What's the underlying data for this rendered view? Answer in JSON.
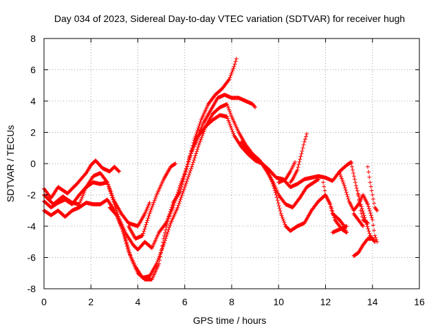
{
  "chart_data": {
    "type": "scatter",
    "title": "Day 034 of 2023, Sidereal Day-to-day VTEC variation (SDTVAR) for receiver hugh",
    "xlabel": "GPS time / hours",
    "ylabel": "SDTVAR / TECUs",
    "xlim": [
      0,
      16
    ],
    "ylim": [
      -8,
      8
    ],
    "xticks": [
      0,
      2,
      4,
      6,
      8,
      10,
      12,
      14,
      16
    ],
    "yticks": [
      -8,
      -6,
      -4,
      -2,
      0,
      2,
      4,
      6,
      8
    ],
    "grid": true,
    "marker": "+",
    "color": "#ff0000",
    "series": [
      {
        "points": [
          [
            0.0,
            -1.6
          ],
          [
            0.3,
            -2.2
          ],
          [
            0.6,
            -1.5
          ],
          [
            1.0,
            -1.9
          ],
          [
            1.4,
            -1.3
          ],
          [
            1.8,
            -0.6
          ],
          [
            2.0,
            -0.1
          ],
          [
            2.2,
            0.2
          ],
          [
            2.5,
            -0.3
          ],
          [
            2.8,
            -0.5
          ],
          [
            3.0,
            -0.2
          ],
          [
            3.2,
            -0.5
          ]
        ]
      },
      {
        "points": [
          [
            0.0,
            -2.4
          ],
          [
            0.3,
            -2.8
          ],
          [
            0.6,
            -2.5
          ],
          [
            0.9,
            -2.3
          ],
          [
            1.2,
            -2.6
          ],
          [
            1.5,
            -2.0
          ],
          [
            1.8,
            -1.5
          ],
          [
            2.1,
            -1.2
          ],
          [
            2.4,
            -1.3
          ],
          [
            2.7,
            -1.2
          ],
          [
            3.0,
            -2.4
          ],
          [
            3.3,
            -3.2
          ],
          [
            3.6,
            -3.8
          ],
          [
            4.0,
            -4.0
          ],
          [
            4.3,
            -3.2
          ],
          [
            4.5,
            -2.5
          ]
        ]
      },
      {
        "points": [
          [
            0.0,
            -2.0
          ],
          [
            0.4,
            -2.6
          ],
          [
            0.8,
            -2.1
          ],
          [
            1.2,
            -2.5
          ],
          [
            1.5,
            -2.6
          ],
          [
            1.8,
            -1.5
          ],
          [
            2.1,
            -0.8
          ],
          [
            2.4,
            -0.6
          ],
          [
            2.7,
            -1.2
          ],
          [
            3.0,
            -2.6
          ],
          [
            3.2,
            -3.5
          ],
          [
            3.5,
            -4.5
          ],
          [
            3.8,
            -5.2
          ],
          [
            4.0,
            -5.5
          ],
          [
            4.3,
            -5.0
          ],
          [
            4.6,
            -5.4
          ],
          [
            4.9,
            -4.4
          ],
          [
            5.2,
            -3.8
          ],
          [
            5.5,
            -2.8
          ],
          [
            5.8,
            -1.4
          ],
          [
            6.0,
            -0.6
          ],
          [
            6.3,
            0.8
          ],
          [
            6.6,
            1.8
          ],
          [
            6.9,
            2.4
          ],
          [
            7.2,
            2.8
          ],
          [
            7.5,
            3.1
          ],
          [
            7.8,
            3.0
          ],
          [
            8.1,
            1.8
          ],
          [
            8.4,
            1.1
          ],
          [
            8.7,
            0.6
          ],
          [
            9.0,
            0.2
          ],
          [
            9.3,
            0.0
          ],
          [
            9.6,
            -0.4
          ],
          [
            9.9,
            -0.9
          ],
          [
            10.2,
            -1.0
          ],
          [
            10.5,
            -1.5
          ],
          [
            10.8,
            -1.3
          ],
          [
            11.1,
            -1.0
          ],
          [
            11.4,
            -0.9
          ],
          [
            11.7,
            -0.8
          ],
          [
            12.0,
            -0.9
          ],
          [
            12.3,
            -1.1
          ],
          [
            12.6,
            -0.5
          ],
          [
            12.9,
            -0.1
          ],
          [
            13.1,
            0.1
          ]
        ]
      },
      {
        "points": [
          [
            0.0,
            -3.0
          ],
          [
            0.3,
            -3.3
          ],
          [
            0.6,
            -3.0
          ],
          [
            0.9,
            -3.4
          ],
          [
            1.2,
            -3.0
          ],
          [
            1.5,
            -2.8
          ],
          [
            1.8,
            -2.5
          ],
          [
            2.1,
            -2.6
          ],
          [
            2.4,
            -2.6
          ],
          [
            2.7,
            -2.3
          ],
          [
            3.0,
            -3.0
          ],
          [
            3.3,
            -4.0
          ],
          [
            3.6,
            -5.6
          ],
          [
            3.9,
            -6.6
          ],
          [
            4.2,
            -7.3
          ],
          [
            4.5,
            -7.2
          ],
          [
            4.8,
            -6.4
          ],
          [
            5.1,
            -5.2
          ],
          [
            5.4,
            -3.8
          ],
          [
            5.7,
            -2.8
          ],
          [
            6.0,
            -1.5
          ],
          [
            6.3,
            -0.2
          ],
          [
            6.6,
            1.2
          ],
          [
            6.9,
            2.4
          ],
          [
            7.2,
            3.2
          ],
          [
            7.5,
            3.6
          ],
          [
            7.8,
            3.8
          ],
          [
            8.0,
            3.0
          ],
          [
            8.3,
            2.0
          ],
          [
            8.6,
            1.2
          ],
          [
            8.9,
            0.6
          ],
          [
            9.2,
            0.2
          ],
          [
            9.5,
            -0.5
          ],
          [
            9.8,
            -1.3
          ],
          [
            10.0,
            -2.0
          ],
          [
            10.3,
            -2.6
          ],
          [
            10.6,
            -2.8
          ],
          [
            10.9,
            -2.2
          ],
          [
            11.2,
            -1.5
          ],
          [
            11.5,
            -1.2
          ],
          [
            11.7,
            -1.0
          ]
        ]
      },
      {
        "points": [
          [
            2.8,
            -2.8
          ],
          [
            3.1,
            -3.3
          ],
          [
            3.4,
            -4.4
          ],
          [
            3.7,
            -6.0
          ],
          [
            4.0,
            -7.0
          ],
          [
            4.3,
            -7.4
          ],
          [
            4.6,
            -7.4
          ],
          [
            4.9,
            -6.4
          ],
          [
            5.1,
            -4.8
          ],
          [
            5.3,
            -3.5
          ],
          [
            5.5,
            -2.5
          ],
          [
            5.8,
            -1.8
          ],
          [
            6.1,
            -0.2
          ],
          [
            6.4,
            1.5
          ],
          [
            6.7,
            2.8
          ],
          [
            7.0,
            3.8
          ],
          [
            7.3,
            4.4
          ],
          [
            7.6,
            4.8
          ],
          [
            7.9,
            5.4
          ],
          [
            8.1,
            6.2
          ],
          [
            8.2,
            6.7
          ]
        ]
      },
      {
        "points": [
          [
            3.6,
            -4.0
          ],
          [
            3.9,
            -4.8
          ],
          [
            4.2,
            -4.6
          ],
          [
            4.5,
            -3.2
          ],
          [
            4.8,
            -2.0
          ],
          [
            5.1,
            -1.0
          ],
          [
            5.4,
            -0.2
          ],
          [
            5.6,
            0.0
          ]
        ]
      },
      {
        "points": [
          [
            6.2,
            0.4
          ],
          [
            6.5,
            1.6
          ],
          [
            6.8,
            2.6
          ],
          [
            7.1,
            3.4
          ],
          [
            7.4,
            4.2
          ],
          [
            7.7,
            4.4
          ],
          [
            8.0,
            4.2
          ],
          [
            8.3,
            4.2
          ],
          [
            8.6,
            4.0
          ],
          [
            8.9,
            3.8
          ],
          [
            9.0,
            3.6
          ]
        ]
      },
      {
        "points": [
          [
            8.4,
            1.4
          ],
          [
            8.7,
            0.8
          ],
          [
            9.0,
            0.4
          ],
          [
            9.3,
            0.0
          ],
          [
            9.6,
            -0.6
          ],
          [
            9.9,
            -2.0
          ],
          [
            10.1,
            -3.2
          ],
          [
            10.3,
            -4.0
          ],
          [
            10.5,
            -4.3
          ],
          [
            10.8,
            -4.0
          ],
          [
            11.1,
            -3.8
          ],
          [
            11.4,
            -3.0
          ],
          [
            11.7,
            -2.4
          ],
          [
            12.0,
            -2.0
          ],
          [
            12.2,
            -2.6
          ],
          [
            12.4,
            -3.6
          ],
          [
            12.7,
            -4.2
          ],
          [
            12.9,
            -4.4
          ]
        ]
      },
      {
        "points": [
          [
            10.5,
            -1.2
          ],
          [
            10.6,
            -1.0
          ],
          [
            10.8,
            -0.4
          ],
          [
            11.0,
            0.8
          ],
          [
            11.1,
            1.4
          ],
          [
            11.2,
            1.9
          ]
        ]
      },
      {
        "points": [
          [
            10.0,
            -1.2
          ],
          [
            10.3,
            -1.0
          ],
          [
            10.5,
            -0.5
          ],
          [
            10.6,
            -0.2
          ],
          [
            10.7,
            0.1
          ]
        ]
      },
      {
        "points": [
          [
            11.9,
            -1.2
          ],
          [
            12.0,
            -2.0
          ],
          [
            12.2,
            -2.6
          ],
          [
            12.3,
            -3.2
          ],
          [
            12.6,
            -3.6
          ],
          [
            12.8,
            -4.0
          ],
          [
            12.9,
            -4.4
          ]
        ]
      },
      {
        "points": [
          [
            12.3,
            -4.4
          ],
          [
            12.6,
            -4.2
          ],
          [
            12.9,
            -4.0
          ]
        ]
      },
      {
        "points": [
          [
            12.6,
            -0.6
          ],
          [
            12.8,
            -1.4
          ],
          [
            13.0,
            -2.4
          ],
          [
            13.2,
            -3.0
          ],
          [
            13.4,
            -2.6
          ],
          [
            13.6,
            -2.0
          ],
          [
            13.8,
            -2.6
          ],
          [
            14.0,
            -3.6
          ],
          [
            14.1,
            -4.6
          ],
          [
            14.2,
            -5.0
          ]
        ]
      },
      {
        "points": [
          [
            13.1,
            0.0
          ],
          [
            13.3,
            -1.4
          ],
          [
            13.5,
            -2.6
          ],
          [
            13.7,
            -3.6
          ],
          [
            13.9,
            -4.6
          ],
          [
            14.1,
            -5.0
          ]
        ]
      },
      {
        "points": [
          [
            13.2,
            -5.9
          ],
          [
            13.4,
            -5.7
          ],
          [
            13.6,
            -5.2
          ],
          [
            13.8,
            -4.8
          ],
          [
            14.0,
            -4.8
          ],
          [
            14.1,
            -5.0
          ]
        ]
      },
      {
        "points": [
          [
            13.8,
            -0.2
          ],
          [
            13.9,
            -1.2
          ],
          [
            14.0,
            -2.0
          ],
          [
            14.1,
            -2.8
          ],
          [
            14.2,
            -3.0
          ]
        ]
      },
      {
        "points": [
          [
            13.4,
            -2.0
          ],
          [
            13.5,
            -3.0
          ],
          [
            13.6,
            -3.6
          ],
          [
            13.8,
            -3.8
          ]
        ]
      },
      {
        "points": [
          [
            13.2,
            -3.2
          ],
          [
            13.4,
            -3.6
          ],
          [
            13.6,
            -4.0
          ]
        ]
      }
    ]
  }
}
